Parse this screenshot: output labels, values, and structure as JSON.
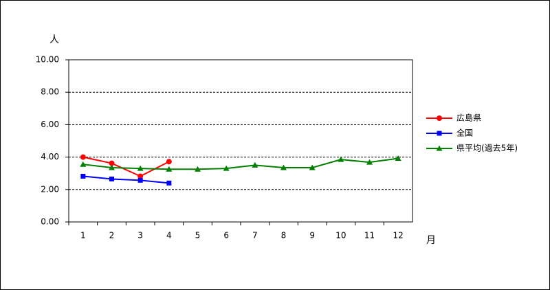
{
  "chart_data": {
    "type": "line",
    "y_label": "人",
    "x_label": "月",
    "categories": [
      "1",
      "2",
      "3",
      "4",
      "5",
      "6",
      "7",
      "8",
      "9",
      "10",
      "11",
      "12"
    ],
    "series": [
      {
        "name": "広島県",
        "color": "#ff0000",
        "marker": "circle",
        "values": [
          4.0,
          3.62,
          2.82,
          3.72,
          null,
          null,
          null,
          null,
          null,
          null,
          null,
          null
        ]
      },
      {
        "name": "全国",
        "color": "#0000ff",
        "marker": "square",
        "values": [
          2.82,
          2.65,
          2.57,
          2.4,
          null,
          null,
          null,
          null,
          null,
          null,
          null,
          null
        ]
      },
      {
        "name": "県平均(過去5年)",
        "color": "#008000",
        "marker": "triangle",
        "values": [
          3.55,
          3.35,
          3.3,
          3.25,
          3.25,
          3.3,
          3.5,
          3.35,
          3.35,
          3.85,
          3.68,
          3.92
        ]
      }
    ],
    "ylim": [
      0,
      10
    ],
    "yticks": [
      {
        "value": 0,
        "label": "0.00"
      },
      {
        "value": 2,
        "label": "2.00"
      },
      {
        "value": 4,
        "label": "4.00"
      },
      {
        "value": 6,
        "label": "6.00"
      },
      {
        "value": 8,
        "label": "8.00"
      },
      {
        "value": 10,
        "label": "10.00"
      }
    ],
    "grid": true,
    "legend": "right"
  }
}
